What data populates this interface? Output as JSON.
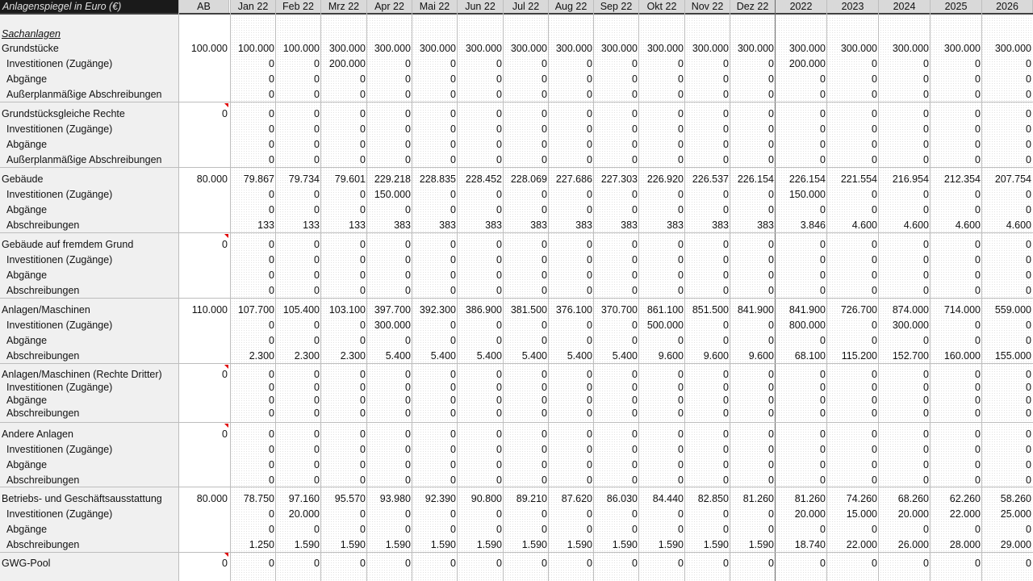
{
  "sheet": {
    "title": "Anlagenspiegel in Euro (€)",
    "columns": [
      "AB",
      "Jan 22",
      "Feb 22",
      "Mrz 22",
      "Apr 22",
      "Mai 22",
      "Jun 22",
      "Jul 22",
      "Aug 22",
      "Sep 22",
      "Okt 22",
      "Nov 22",
      "Dez 22",
      "2022",
      "2023",
      "2024",
      "2025",
      "2026"
    ],
    "section_title": "Sachanlagen",
    "groups": [
      {
        "label": "Grundstücke",
        "ab": "100.000",
        "values": [
          "100.000",
          "100.000",
          "300.000",
          "300.000",
          "300.000",
          "300.000",
          "300.000",
          "300.000",
          "300.000",
          "300.000",
          "300.000",
          "300.000",
          "300.000",
          "300.000",
          "300.000",
          "300.000",
          "300.000"
        ],
        "sub": [
          {
            "label": "Investitionen (Zugänge)",
            "values": [
              "0",
              "0",
              "200.000",
              "0",
              "0",
              "0",
              "0",
              "0",
              "0",
              "0",
              "0",
              "0",
              "200.000",
              "0",
              "0",
              "0",
              "0"
            ]
          },
          {
            "label": "Abgänge",
            "values": [
              "0",
              "0",
              "0",
              "0",
              "0",
              "0",
              "0",
              "0",
              "0",
              "0",
              "0",
              "0",
              "0",
              "0",
              "0",
              "0",
              "0"
            ]
          },
          {
            "label": "Außerplanmäßige Abschreibungen",
            "values": [
              "0",
              "0",
              "0",
              "0",
              "0",
              "0",
              "0",
              "0",
              "0",
              "0",
              "0",
              "0",
              "0",
              "0",
              "0",
              "0",
              "0"
            ]
          }
        ]
      },
      {
        "label": "Grundstücksgleiche Rechte",
        "ab": "0",
        "values": [
          "0",
          "0",
          "0",
          "0",
          "0",
          "0",
          "0",
          "0",
          "0",
          "0",
          "0",
          "0",
          "0",
          "0",
          "0",
          "0",
          "0"
        ],
        "sub": [
          {
            "label": "Investitionen (Zugänge)",
            "values": [
              "0",
              "0",
              "0",
              "0",
              "0",
              "0",
              "0",
              "0",
              "0",
              "0",
              "0",
              "0",
              "0",
              "0",
              "0",
              "0",
              "0"
            ]
          },
          {
            "label": "Abgänge",
            "values": [
              "0",
              "0",
              "0",
              "0",
              "0",
              "0",
              "0",
              "0",
              "0",
              "0",
              "0",
              "0",
              "0",
              "0",
              "0",
              "0",
              "0"
            ]
          },
          {
            "label": "Außerplanmäßige Abschreibungen",
            "values": [
              "0",
              "0",
              "0",
              "0",
              "0",
              "0",
              "0",
              "0",
              "0",
              "0",
              "0",
              "0",
              "0",
              "0",
              "0",
              "0",
              "0"
            ]
          }
        ]
      },
      {
        "label": "Gebäude",
        "ab": "80.000",
        "values": [
          "79.867",
          "79.734",
          "79.601",
          "229.218",
          "228.835",
          "228.452",
          "228.069",
          "227.686",
          "227.303",
          "226.920",
          "226.537",
          "226.154",
          "226.154",
          "221.554",
          "216.954",
          "212.354",
          "207.754"
        ],
        "sub": [
          {
            "label": "Investitionen (Zugänge)",
            "values": [
              "0",
              "0",
              "0",
              "150.000",
              "0",
              "0",
              "0",
              "0",
              "0",
              "0",
              "0",
              "0",
              "150.000",
              "0",
              "0",
              "0",
              "0"
            ]
          },
          {
            "label": "Abgänge",
            "values": [
              "0",
              "0",
              "0",
              "0",
              "0",
              "0",
              "0",
              "0",
              "0",
              "0",
              "0",
              "0",
              "0",
              "0",
              "0",
              "0",
              "0"
            ]
          },
          {
            "label": "Abschreibungen",
            "values": [
              "133",
              "133",
              "133",
              "383",
              "383",
              "383",
              "383",
              "383",
              "383",
              "383",
              "383",
              "383",
              "3.846",
              "4.600",
              "4.600",
              "4.600",
              "4.600"
            ]
          }
        ]
      },
      {
        "label": "Gebäude auf fremdem Grund",
        "ab": "0",
        "values": [
          "0",
          "0",
          "0",
          "0",
          "0",
          "0",
          "0",
          "0",
          "0",
          "0",
          "0",
          "0",
          "0",
          "0",
          "0",
          "0",
          "0"
        ],
        "sub": [
          {
            "label": "Investitionen (Zugänge)",
            "values": [
              "0",
              "0",
              "0",
              "0",
              "0",
              "0",
              "0",
              "0",
              "0",
              "0",
              "0",
              "0",
              "0",
              "0",
              "0",
              "0",
              "0"
            ]
          },
          {
            "label": "Abgänge",
            "values": [
              "0",
              "0",
              "0",
              "0",
              "0",
              "0",
              "0",
              "0",
              "0",
              "0",
              "0",
              "0",
              "0",
              "0",
              "0",
              "0",
              "0"
            ]
          },
          {
            "label": "Abschreibungen",
            "values": [
              "0",
              "0",
              "0",
              "0",
              "0",
              "0",
              "0",
              "0",
              "0",
              "0",
              "0",
              "0",
              "0",
              "0",
              "0",
              "0",
              "0"
            ]
          }
        ]
      },
      {
        "label": "Anlagen/Maschinen",
        "ab": "110.000",
        "values": [
          "107.700",
          "105.400",
          "103.100",
          "397.700",
          "392.300",
          "386.900",
          "381.500",
          "376.100",
          "370.700",
          "861.100",
          "851.500",
          "841.900",
          "841.900",
          "726.700",
          "874.000",
          "714.000",
          "559.000"
        ],
        "sub": [
          {
            "label": "Investitionen (Zugänge)",
            "values": [
              "0",
              "0",
              "0",
              "300.000",
              "0",
              "0",
              "0",
              "0",
              "0",
              "500.000",
              "0",
              "0",
              "800.000",
              "0",
              "300.000",
              "0",
              "0"
            ]
          },
          {
            "label": "Abgänge",
            "values": [
              "0",
              "0",
              "0",
              "0",
              "0",
              "0",
              "0",
              "0",
              "0",
              "0",
              "0",
              "0",
              "0",
              "0",
              "0",
              "0",
              "0"
            ]
          },
          {
            "label": "Abschreibungen",
            "values": [
              "2.300",
              "2.300",
              "2.300",
              "5.400",
              "5.400",
              "5.400",
              "5.400",
              "5.400",
              "5.400",
              "9.600",
              "9.600",
              "9.600",
              "68.100",
              "115.200",
              "152.700",
              "160.000",
              "155.000"
            ]
          }
        ]
      },
      {
        "label": "Anlagen/Maschinen (Rechte Dritter)",
        "ab": "0",
        "compact": true,
        "values": [
          "0",
          "0",
          "0",
          "0",
          "0",
          "0",
          "0",
          "0",
          "0",
          "0",
          "0",
          "0",
          "0",
          "0",
          "0",
          "0",
          "0"
        ],
        "sub": [
          {
            "label": "Investitionen (Zugänge)",
            "values": [
              "0",
              "0",
              "0",
              "0",
              "0",
              "0",
              "0",
              "0",
              "0",
              "0",
              "0",
              "0",
              "0",
              "0",
              "0",
              "0",
              "0"
            ]
          },
          {
            "label": "Abgänge",
            "values": [
              "0",
              "0",
              "0",
              "0",
              "0",
              "0",
              "0",
              "0",
              "0",
              "0",
              "0",
              "0",
              "0",
              "0",
              "0",
              "0",
              "0"
            ]
          },
          {
            "label": "Abschreibungen",
            "values": [
              "0",
              "0",
              "0",
              "0",
              "0",
              "0",
              "0",
              "0",
              "0",
              "0",
              "0",
              "0",
              "0",
              "0",
              "0",
              "0",
              "0"
            ]
          }
        ]
      },
      {
        "label": "Andere Anlagen",
        "ab": "0",
        "values": [
          "0",
          "0",
          "0",
          "0",
          "0",
          "0",
          "0",
          "0",
          "0",
          "0",
          "0",
          "0",
          "0",
          "0",
          "0",
          "0",
          "0"
        ],
        "sub": [
          {
            "label": "Investitionen (Zugänge)",
            "values": [
              "0",
              "0",
              "0",
              "0",
              "0",
              "0",
              "0",
              "0",
              "0",
              "0",
              "0",
              "0",
              "0",
              "0",
              "0",
              "0",
              "0"
            ]
          },
          {
            "label": "Abgänge",
            "values": [
              "0",
              "0",
              "0",
              "0",
              "0",
              "0",
              "0",
              "0",
              "0",
              "0",
              "0",
              "0",
              "0",
              "0",
              "0",
              "0",
              "0"
            ]
          },
          {
            "label": "Abschreibungen",
            "values": [
              "0",
              "0",
              "0",
              "0",
              "0",
              "0",
              "0",
              "0",
              "0",
              "0",
              "0",
              "0",
              "0",
              "0",
              "0",
              "0",
              "0"
            ]
          }
        ]
      },
      {
        "label": "Betriebs- und Geschäftsausstattung",
        "ab": "80.000",
        "values": [
          "78.750",
          "97.160",
          "95.570",
          "93.980",
          "92.390",
          "90.800",
          "89.210",
          "87.620",
          "86.030",
          "84.440",
          "82.850",
          "81.260",
          "81.260",
          "74.260",
          "68.260",
          "62.260",
          "58.260"
        ],
        "sub": [
          {
            "label": "Investitionen (Zugänge)",
            "values": [
              "0",
              "20.000",
              "0",
              "0",
              "0",
              "0",
              "0",
              "0",
              "0",
              "0",
              "0",
              "0",
              "20.000",
              "15.000",
              "20.000",
              "22.000",
              "25.000"
            ]
          },
          {
            "label": "Abgänge",
            "values": [
              "0",
              "0",
              "0",
              "0",
              "0",
              "0",
              "0",
              "0",
              "0",
              "0",
              "0",
              "0",
              "0",
              "0",
              "0",
              "0",
              "0"
            ]
          },
          {
            "label": "Abschreibungen",
            "values": [
              "1.250",
              "1.590",
              "1.590",
              "1.590",
              "1.590",
              "1.590",
              "1.590",
              "1.590",
              "1.590",
              "1.590",
              "1.590",
              "1.590",
              "18.740",
              "22.000",
              "26.000",
              "28.000",
              "29.000"
            ]
          }
        ]
      },
      {
        "label": "GWG-Pool",
        "ab": "0",
        "values": [
          "0",
          "0",
          "0",
          "0",
          "0",
          "0",
          "0",
          "0",
          "0",
          "0",
          "0",
          "0",
          "0",
          "0",
          "0",
          "0",
          "0"
        ],
        "sub": []
      }
    ]
  }
}
